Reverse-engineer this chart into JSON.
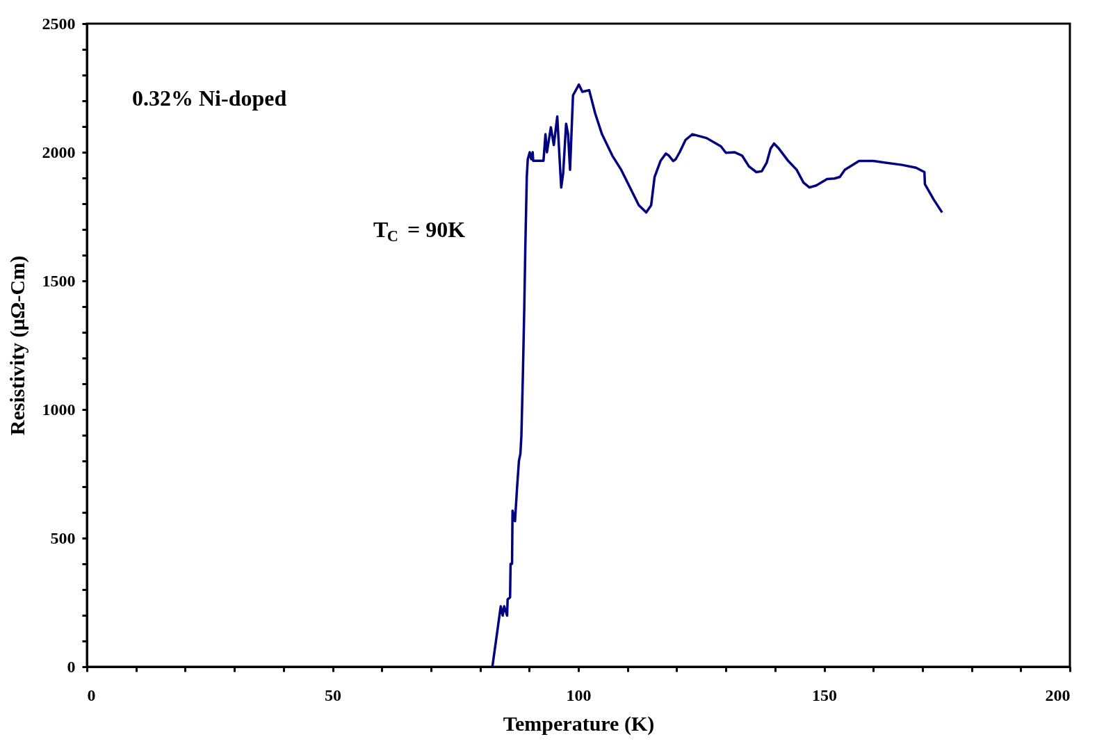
{
  "chart_data": {
    "type": "line",
    "xlabel": "Temperature (K)",
    "ylabel": "Resistivity (μΩ-Cm)",
    "xlim": [
      0,
      200
    ],
    "ylim": [
      0,
      2500
    ],
    "xticks": [
      0,
      {
        "value": 10,
        "label": null
      },
      {
        "value": 20,
        "label": null
      },
      {
        "value": 30,
        "label": null
      },
      {
        "value": 40,
        "label": null
      },
      50,
      {
        "value": 60,
        "label": null
      },
      {
        "value": 70,
        "label": null
      },
      {
        "value": 80,
        "label": null
      },
      {
        "value": 90,
        "label": null
      },
      100,
      {
        "value": 110,
        "label": null
      },
      {
        "value": 120,
        "label": null
      },
      {
        "value": 130,
        "label": null
      },
      {
        "value": 140,
        "label": null
      },
      150,
      {
        "value": 160,
        "label": null
      },
      {
        "value": 170,
        "label": null
      },
      {
        "value": 180,
        "label": null
      },
      {
        "value": 190,
        "label": null
      },
      200
    ],
    "yticks": [
      0,
      {
        "value": 100,
        "label": null
      },
      {
        "value": 200,
        "label": null
      },
      {
        "value": 300,
        "label": null
      },
      {
        "value": 400,
        "label": null
      },
      500,
      {
        "value": 600,
        "label": null
      },
      {
        "value": 700,
        "label": null
      },
      {
        "value": 800,
        "label": null
      },
      {
        "value": 900,
        "label": null
      },
      1000,
      {
        "value": 1100,
        "label": null
      },
      {
        "value": 1200,
        "label": null
      },
      {
        "value": 1300,
        "label": null
      },
      {
        "value": 1400,
        "label": null
      },
      1500,
      {
        "value": 1600,
        "label": null
      },
      {
        "value": 1700,
        "label": null
      },
      {
        "value": 1800,
        "label": null
      },
      {
        "value": 1900,
        "label": null
      },
      2000,
      {
        "value": 2100,
        "label": null
      },
      {
        "value": 2200,
        "label": null
      },
      {
        "value": 2300,
        "label": null
      },
      {
        "value": 2400,
        "label": null
      },
      2500
    ],
    "grid": false,
    "marker": "none",
    "line_style": "solid",
    "annotations": [
      "0.32% Ni-doped",
      "T$_{C}$ = 90K"
    ],
    "series": [
      {
        "color": "#000080",
        "x": [
          82.5,
          83.5,
          84.2,
          84.6,
          84.9,
          85.5,
          85.6,
          86.1,
          86.2,
          86.5,
          86.6,
          87.1,
          87.5,
          87.9,
          88.2,
          88.4,
          88.7,
          89.0,
          89.2,
          89.5,
          89.7,
          90.1,
          90.4,
          90.7,
          90.8,
          92.9,
          93.3,
          93.6,
          94.4,
          95.0,
          95.7,
          96.5,
          96.9,
          97.5,
          97.9,
          98.3,
          98.9,
          100.1,
          100.8,
          102.2,
          103.4,
          104.8,
          106.9,
          108.7,
          110.5,
          112.3,
          113.8,
          114.8,
          115.5,
          116.7,
          117.8,
          118.4,
          119.3,
          119.8,
          120.6,
          121.8,
          123.2,
          126.1,
          129.0,
          130.0,
          131.8,
          133.3,
          134.7,
          136.2,
          137.3,
          138.3,
          139.1,
          139.8,
          140.8,
          142.7,
          144.4,
          145.8,
          147.0,
          148.4,
          150.6,
          152.1,
          153.2,
          154.2,
          157.1,
          160.0,
          165.8,
          168.7,
          170.4,
          170.5,
          172.3,
          174.0
        ],
        "values": [
          0,
          138,
          235,
          199,
          235,
          199,
          262,
          270,
          400,
          400,
          607,
          566,
          690,
          800,
          828,
          897,
          1131,
          1407,
          1628,
          1904,
          1973,
          2000,
          1973,
          2000,
          1967,
          1967,
          2070,
          2000,
          2097,
          2028,
          2139,
          1863,
          1918,
          2111,
          2070,
          1932,
          2221,
          2263,
          2235,
          2241,
          2152,
          2070,
          1987,
          1932,
          1863,
          1794,
          1766,
          1794,
          1904,
          1966,
          1995,
          1987,
          1966,
          1973,
          2000,
          2048,
          2070,
          2055,
          2023,
          1998,
          2000,
          1987,
          1945,
          1923,
          1926,
          1959,
          2014,
          2034,
          2014,
          1966,
          1932,
          1882,
          1863,
          1871,
          1896,
          1898,
          1904,
          1932,
          1966,
          1966,
          1951,
          1940,
          1923,
          1876,
          1816,
          1766
        ]
      }
    ]
  }
}
